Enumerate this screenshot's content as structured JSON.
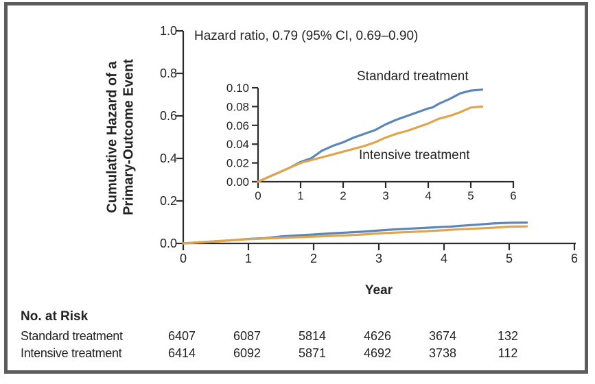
{
  "figure": {
    "ylabel_line1": "Cumulative Hazard of a",
    "ylabel_line2": "Primary-Outcome Event"
  },
  "colors": {
    "standard_blue": "#5C86B8",
    "intensive_orange": "#DFA44C",
    "axis_black": "#2B2B2B",
    "frame_gray": "#5C5C5C"
  },
  "chart_data": [
    {
      "type": "line",
      "title": "",
      "annotation": "Hazard ratio, 0.79 (95% CI, 0.69–0.90)",
      "xlabel": "Year",
      "ylabel": "Cumulative Hazard of a Primary-Outcome Event",
      "xlim": [
        0,
        6
      ],
      "ylim": [
        0,
        1.0
      ],
      "x_ticks": [
        0,
        1,
        2,
        3,
        4,
        5,
        6
      ],
      "x_tick_labels": [
        "0",
        "1",
        "2",
        "3",
        "4",
        "5",
        "6"
      ],
      "y_ticks": [
        0,
        0.2,
        0.4,
        0.6,
        0.8,
        1.0
      ],
      "y_tick_labels": [
        "0.0",
        "0.2",
        "0.4",
        "0.6",
        "0.8",
        "1.0"
      ],
      "grid": false,
      "legend": "inline-labels-on-inset",
      "series": [
        {
          "name": "Standard treatment",
          "key": "standard",
          "color": "#5C86B8",
          "x": [
            0,
            0.25,
            0.5,
            0.75,
            1,
            1.25,
            1.5,
            1.75,
            2,
            2.25,
            2.5,
            2.75,
            3,
            3.25,
            3.5,
            3.75,
            4,
            4.1,
            4.25,
            4.5,
            4.75,
            5,
            5.27
          ],
          "y": [
            0,
            0.005,
            0.01,
            0.015,
            0.021,
            0.025,
            0.033,
            0.038,
            0.042,
            0.047,
            0.051,
            0.055,
            0.061,
            0.066,
            0.07,
            0.074,
            0.078,
            0.079,
            0.083,
            0.088,
            0.094,
            0.097,
            0.098
          ]
        },
        {
          "name": "Intensive treatment",
          "key": "intensive",
          "color": "#DFA44C",
          "x": [
            0,
            0.25,
            0.5,
            0.75,
            1,
            1.25,
            1.5,
            1.75,
            2,
            2.25,
            2.5,
            2.75,
            3,
            3.25,
            3.5,
            3.75,
            4,
            4.1,
            4.25,
            4.5,
            4.75,
            5,
            5.27
          ],
          "y": [
            0,
            0.005,
            0.01,
            0.015,
            0.02,
            0.023,
            0.026,
            0.029,
            0.032,
            0.035,
            0.038,
            0.042,
            0.047,
            0.051,
            0.054,
            0.058,
            0.062,
            0.064,
            0.067,
            0.07,
            0.074,
            0.079,
            0.08
          ]
        }
      ]
    },
    {
      "type": "line",
      "title": "",
      "subtitle": "inset (expanded y-axis)",
      "xlabel": "",
      "ylabel": "",
      "xlim": [
        0,
        6
      ],
      "ylim": [
        0,
        0.1
      ],
      "x_ticks": [
        0,
        1,
        2,
        3,
        4,
        5,
        6
      ],
      "x_tick_labels": [
        "0",
        "1",
        "2",
        "3",
        "4",
        "5",
        "6"
      ],
      "y_ticks": [
        0,
        0.02,
        0.04,
        0.06,
        0.08,
        0.1
      ],
      "y_tick_labels": [
        "0.00",
        "0.02",
        "0.04",
        "0.06",
        "0.08",
        "0.10"
      ],
      "grid": false,
      "legend": "inline-labels",
      "series": [
        {
          "name": "Standard treatment",
          "key": "standard",
          "color": "#5C86B8",
          "x": [
            0,
            0.25,
            0.5,
            0.75,
            1,
            1.25,
            1.5,
            1.75,
            2,
            2.25,
            2.5,
            2.75,
            3,
            3.25,
            3.5,
            3.75,
            4,
            4.1,
            4.25,
            4.5,
            4.75,
            5,
            5.27
          ],
          "y": [
            0,
            0.005,
            0.01,
            0.015,
            0.021,
            0.025,
            0.033,
            0.038,
            0.042,
            0.047,
            0.051,
            0.055,
            0.061,
            0.066,
            0.07,
            0.074,
            0.078,
            0.079,
            0.083,
            0.088,
            0.094,
            0.097,
            0.098
          ]
        },
        {
          "name": "Intensive treatment",
          "key": "intensive",
          "color": "#DFA44C",
          "x": [
            0,
            0.25,
            0.5,
            0.75,
            1,
            1.25,
            1.5,
            1.75,
            2,
            2.25,
            2.5,
            2.75,
            3,
            3.25,
            3.5,
            3.75,
            4,
            4.1,
            4.25,
            4.5,
            4.75,
            5,
            5.27
          ],
          "y": [
            0,
            0.005,
            0.01,
            0.015,
            0.02,
            0.023,
            0.026,
            0.029,
            0.032,
            0.035,
            0.038,
            0.042,
            0.047,
            0.051,
            0.054,
            0.058,
            0.062,
            0.064,
            0.067,
            0.07,
            0.074,
            0.079,
            0.08
          ]
        }
      ]
    }
  ],
  "risk_table": {
    "title": "No. at Risk",
    "columns_years": [
      0,
      1,
      2,
      3,
      4,
      5
    ],
    "rows": [
      {
        "label": "Standard treatment",
        "values": [
          "6407",
          "6087",
          "5814",
          "4626",
          "3674",
          "132"
        ]
      },
      {
        "label": "Intensive treatment",
        "values": [
          "6414",
          "6092",
          "5871",
          "4692",
          "3738",
          "112"
        ]
      }
    ]
  }
}
